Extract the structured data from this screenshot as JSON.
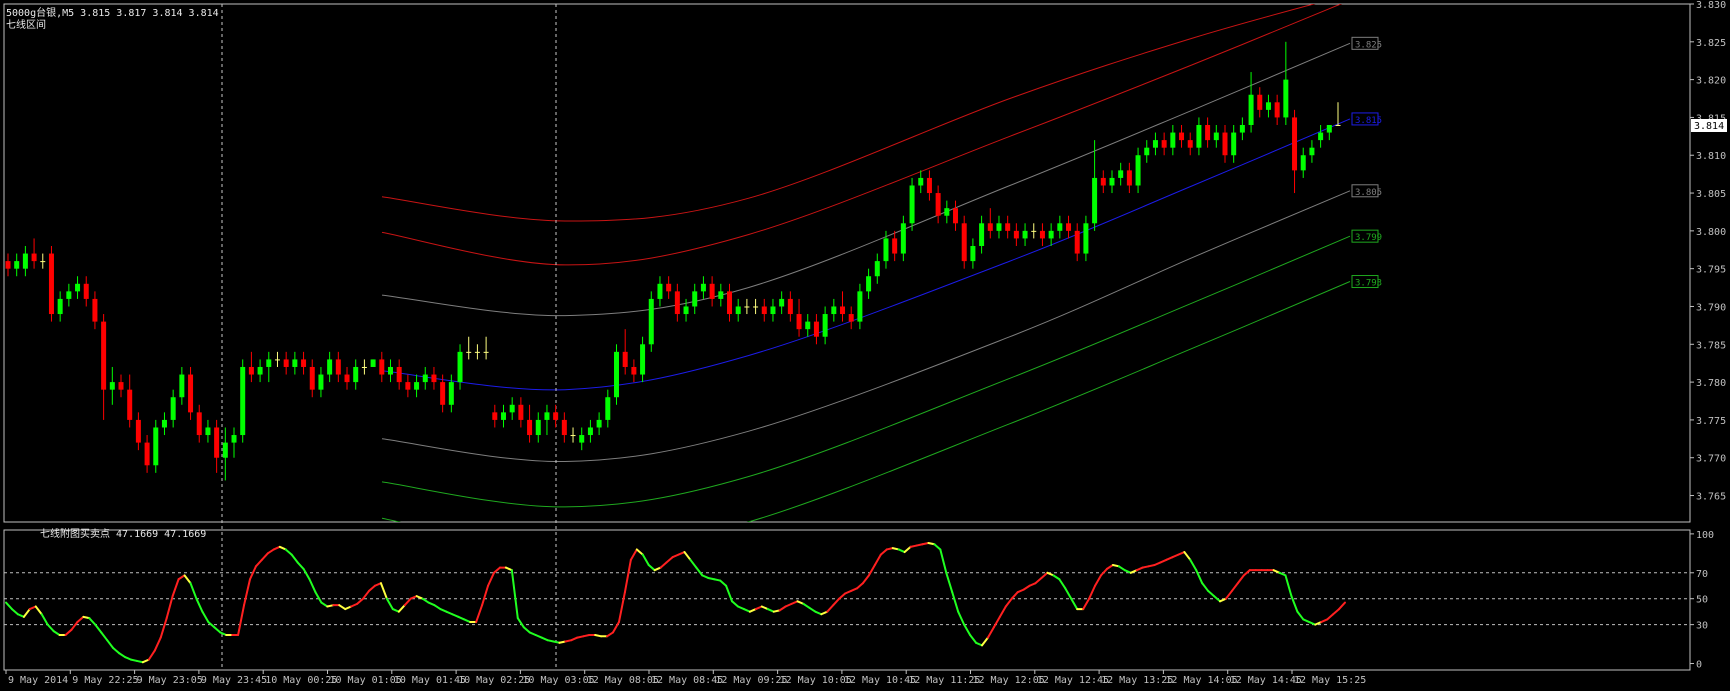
{
  "header": {
    "symbol_line": "5000g台银,M5  3.815 3.817 3.814 3.814",
    "indicator_name": "七线区间"
  },
  "sub_header": {
    "indicator_line": "七线附图买卖点 47.1669 47.1669"
  },
  "colors": {
    "background": "#000000",
    "axis": "#c0c0c0",
    "bull": "#00ff00",
    "bear": "#ff0000",
    "doji": "#ffff80",
    "band_red": "#c81414",
    "band_gray": "#7e7e7e",
    "band_mid": "#1c1ce8",
    "band_green": "#1fa81f",
    "osc_up": "#ff2020",
    "osc_down": "#20ff20",
    "osc_turn": "#ffff40"
  },
  "chart_data": {
    "type": "candlestick",
    "symbol": "5000g台银",
    "timeframe": "M5",
    "ylim": [
      3.7615,
      3.83
    ],
    "y_ticks": [
      3.765,
      3.77,
      3.775,
      3.78,
      3.785,
      3.79,
      3.795,
      3.8,
      3.805,
      3.81,
      3.815,
      3.82,
      3.825,
      3.83
    ],
    "current_price": "3.814",
    "x_labels": [
      "9 May 2014",
      "9 May 22:25",
      "9 May 23:05",
      "9 May 23:45",
      "10 May 00:25",
      "10 May 01:05",
      "10 May 01:45",
      "10 May 02:25",
      "10 May 03:05",
      "12 May 08:05",
      "12 May 08:45",
      "12 May 09:25",
      "12 May 10:05",
      "12 May 10:45",
      "12 May 11:25",
      "12 May 12:05",
      "12 May 12:45",
      "12 May 13:25",
      "12 May 14:05",
      "12 May 14:45",
      "12 May 15:25"
    ],
    "band_labels": [
      {
        "text": "3.825",
        "value": 3.8248
      },
      {
        "text": "3.815",
        "value": 3.8148
      },
      {
        "text": "3.805",
        "value": 3.8053
      },
      {
        "text": "3.799",
        "value": 3.7993
      },
      {
        "text": "3.793",
        "value": 3.7933
      }
    ],
    "band_curves": [
      {
        "kind": "red",
        "points": [
          [
            0,
            3.8045
          ],
          [
            14,
            3.8013
          ],
          [
            28,
            3.8043
          ],
          [
            48,
            3.8175
          ],
          [
            62,
            3.8255
          ],
          [
            74,
            3.8313
          ]
        ]
      },
      {
        "kind": "red",
        "points": [
          [
            0,
            3.7998
          ],
          [
            14,
            3.7955
          ],
          [
            28,
            3.7995
          ],
          [
            48,
            3.8125
          ],
          [
            62,
            3.822
          ],
          [
            74,
            3.8305
          ]
        ]
      },
      {
        "kind": "gray",
        "points": [
          [
            0,
            3.7915
          ],
          [
            14,
            3.7888
          ],
          [
            28,
            3.7925
          ],
          [
            48,
            3.806
          ],
          [
            62,
            3.816
          ],
          [
            74,
            3.8248
          ]
        ]
      },
      {
        "kind": "mid",
        "points": [
          [
            0,
            3.7815
          ],
          [
            14,
            3.779
          ],
          [
            28,
            3.7835
          ],
          [
            48,
            3.796
          ],
          [
            62,
            3.806
          ],
          [
            74,
            3.8148
          ]
        ]
      },
      {
        "kind": "gray",
        "points": [
          [
            0,
            3.7725
          ],
          [
            14,
            3.7695
          ],
          [
            28,
            3.7735
          ],
          [
            48,
            3.786
          ],
          [
            62,
            3.7965
          ],
          [
            74,
            3.8053
          ]
        ]
      },
      {
        "kind": "green",
        "points": [
          [
            0,
            3.7668
          ],
          [
            14,
            3.7635
          ],
          [
            28,
            3.7675
          ],
          [
            48,
            3.7805
          ],
          [
            62,
            3.7905
          ],
          [
            74,
            3.7993
          ]
        ]
      },
      {
        "kind": "green",
        "points": [
          [
            0,
            3.762
          ],
          [
            14,
            3.7575
          ],
          [
            28,
            3.7615
          ],
          [
            48,
            3.7745
          ],
          [
            62,
            3.7845
          ],
          [
            74,
            3.7933
          ]
        ]
      }
    ],
    "ohlc": [
      [
        3.796,
        3.797,
        3.794,
        3.795
      ],
      [
        3.795,
        3.797,
        3.794,
        3.796
      ],
      [
        3.795,
        3.798,
        3.794,
        3.797
      ],
      [
        3.797,
        3.799,
        3.795,
        3.796
      ],
      [
        3.796,
        3.797,
        3.795,
        3.796
      ],
      [
        3.797,
        3.798,
        3.788,
        3.789
      ],
      [
        3.789,
        3.792,
        3.788,
        3.791
      ],
      [
        3.791,
        3.793,
        3.79,
        3.792
      ],
      [
        3.792,
        3.794,
        3.791,
        3.793
      ],
      [
        3.793,
        3.794,
        3.79,
        3.791
      ],
      [
        3.791,
        3.792,
        3.787,
        3.788
      ],
      [
        3.788,
        3.789,
        3.775,
        3.779
      ],
      [
        3.779,
        3.782,
        3.777,
        3.78
      ],
      [
        3.78,
        3.781,
        3.778,
        3.779
      ],
      [
        3.779,
        3.781,
        3.774,
        3.775
      ],
      [
        3.775,
        3.776,
        3.771,
        3.772
      ],
      [
        3.772,
        3.773,
        3.768,
        3.769
      ],
      [
        3.769,
        3.775,
        3.768,
        3.774
      ],
      [
        3.774,
        3.776,
        3.773,
        3.775
      ],
      [
        3.775,
        3.779,
        3.774,
        3.778
      ],
      [
        3.778,
        3.782,
        3.777,
        3.781
      ],
      [
        3.781,
        3.782,
        3.775,
        3.776
      ],
      [
        3.776,
        3.777,
        3.772,
        3.773
      ],
      [
        3.773,
        3.775,
        3.772,
        3.774
      ],
      [
        3.774,
        3.775,
        3.768,
        3.77
      ],
      [
        3.77,
        3.774,
        3.767,
        3.772
      ],
      [
        3.772,
        3.774,
        3.77,
        3.773
      ],
      [
        3.773,
        3.783,
        3.772,
        3.782
      ],
      [
        3.782,
        3.784,
        3.78,
        3.781
      ],
      [
        3.781,
        3.783,
        3.78,
        3.782
      ],
      [
        3.782,
        3.784,
        3.78,
        3.783
      ],
      [
        3.783,
        3.784,
        3.782,
        3.783
      ],
      [
        3.783,
        3.784,
        3.781,
        3.782
      ],
      [
        3.782,
        3.784,
        3.781,
        3.783
      ],
      [
        3.783,
        3.784,
        3.781,
        3.782
      ],
      [
        3.782,
        3.783,
        3.778,
        3.779
      ],
      [
        3.779,
        3.782,
        3.778,
        3.781
      ],
      [
        3.781,
        3.784,
        3.78,
        3.783
      ],
      [
        3.783,
        3.784,
        3.78,
        3.781
      ],
      [
        3.781,
        3.782,
        3.779,
        3.78
      ],
      [
        3.78,
        3.783,
        3.779,
        3.782
      ],
      [
        3.782,
        3.783,
        3.781,
        3.782
      ],
      [
        3.782,
        3.783,
        3.782,
        3.783
      ],
      [
        3.783,
        3.784,
        3.78,
        3.781
      ],
      [
        3.781,
        3.783,
        3.78,
        3.782
      ],
      [
        3.782,
        3.783,
        3.779,
        3.78
      ],
      [
        3.78,
        3.781,
        3.778,
        3.779
      ],
      [
        3.779,
        3.781,
        3.778,
        3.78
      ],
      [
        3.78,
        3.782,
        3.779,
        3.781
      ],
      [
        3.781,
        3.782,
        3.779,
        3.78
      ],
      [
        3.78,
        3.781,
        3.776,
        3.777
      ],
      [
        3.777,
        3.781,
        3.776,
        3.78
      ],
      [
        3.78,
        3.785,
        3.779,
        3.784
      ],
      [
        3.784,
        3.786,
        3.783,
        3.784
      ],
      [
        3.784,
        3.785,
        3.783,
        3.784
      ],
      [
        3.784,
        3.786,
        3.783,
        3.784
      ],
      [
        3.776,
        3.777,
        3.774,
        3.775
      ],
      [
        3.775,
        3.777,
        3.774,
        3.776
      ],
      [
        3.776,
        3.778,
        3.775,
        3.777
      ],
      [
        3.777,
        3.778,
        3.774,
        3.775
      ],
      [
        3.775,
        3.777,
        3.772,
        3.773
      ],
      [
        3.773,
        3.776,
        3.772,
        3.775
      ],
      [
        3.775,
        3.777,
        3.773,
        3.776
      ],
      [
        3.776,
        3.777,
        3.774,
        3.775
      ],
      [
        3.775,
        3.776,
        3.772,
        3.773
      ],
      [
        3.773,
        3.774,
        3.772,
        3.773
      ],
      [
        3.772,
        3.774,
        3.771,
        3.773
      ],
      [
        3.773,
        3.775,
        3.772,
        3.774
      ],
      [
        3.774,
        3.776,
        3.773,
        3.775
      ],
      [
        3.775,
        3.779,
        3.774,
        3.778
      ],
      [
        3.778,
        3.785,
        3.777,
        3.784
      ],
      [
        3.784,
        3.787,
        3.781,
        3.782
      ],
      [
        3.782,
        3.783,
        3.78,
        3.781
      ],
      [
        3.781,
        3.786,
        3.78,
        3.785
      ],
      [
        3.785,
        3.792,
        3.784,
        3.791
      ],
      [
        3.791,
        3.794,
        3.79,
        3.793
      ],
      [
        3.793,
        3.794,
        3.791,
        3.792
      ],
      [
        3.792,
        3.793,
        3.788,
        3.789
      ],
      [
        3.789,
        3.791,
        3.788,
        3.79
      ],
      [
        3.79,
        3.793,
        3.789,
        3.792
      ],
      [
        3.792,
        3.794,
        3.791,
        3.793
      ],
      [
        3.793,
        3.794,
        3.79,
        3.791
      ],
      [
        3.791,
        3.793,
        3.79,
        3.792
      ],
      [
        3.792,
        3.793,
        3.788,
        3.789
      ],
      [
        3.789,
        3.791,
        3.788,
        3.79
      ],
      [
        3.79,
        3.791,
        3.789,
        3.79
      ],
      [
        3.79,
        3.791,
        3.789,
        3.79
      ],
      [
        3.79,
        3.791,
        3.788,
        3.789
      ],
      [
        3.789,
        3.791,
        3.788,
        3.79
      ],
      [
        3.79,
        3.792,
        3.789,
        3.791
      ],
      [
        3.791,
        3.792,
        3.788,
        3.789
      ],
      [
        3.789,
        3.791,
        3.786,
        3.787
      ],
      [
        3.787,
        3.789,
        3.786,
        3.788
      ],
      [
        3.788,
        3.789,
        3.785,
        3.786
      ],
      [
        3.786,
        3.79,
        3.785,
        3.789
      ],
      [
        3.789,
        3.791,
        3.788,
        3.79
      ],
      [
        3.79,
        3.792,
        3.788,
        3.789
      ],
      [
        3.789,
        3.79,
        3.787,
        3.788
      ],
      [
        3.788,
        3.793,
        3.787,
        3.792
      ],
      [
        3.792,
        3.795,
        3.791,
        3.794
      ],
      [
        3.794,
        3.797,
        3.793,
        3.796
      ],
      [
        3.796,
        3.8,
        3.795,
        3.799
      ],
      [
        3.799,
        3.8,
        3.796,
        3.797
      ],
      [
        3.797,
        3.802,
        3.796,
        3.801
      ],
      [
        3.801,
        3.807,
        3.8,
        3.806
      ],
      [
        3.806,
        3.808,
        3.805,
        3.807
      ],
      [
        3.807,
        3.808,
        3.804,
        3.805
      ],
      [
        3.805,
        3.806,
        3.801,
        3.802
      ],
      [
        3.802,
        3.804,
        3.801,
        3.803
      ],
      [
        3.803,
        3.804,
        3.8,
        3.801
      ],
      [
        3.801,
        3.802,
        3.795,
        3.796
      ],
      [
        3.796,
        3.799,
        3.795,
        3.798
      ],
      [
        3.798,
        3.802,
        3.797,
        3.801
      ],
      [
        3.801,
        3.803,
        3.799,
        3.8
      ],
      [
        3.8,
        3.802,
        3.799,
        3.801
      ],
      [
        3.801,
        3.802,
        3.799,
        3.8
      ],
      [
        3.8,
        3.801,
        3.798,
        3.799
      ],
      [
        3.799,
        3.801,
        3.798,
        3.8
      ],
      [
        3.8,
        3.801,
        3.799,
        3.8
      ],
      [
        3.8,
        3.801,
        3.798,
        3.799
      ],
      [
        3.799,
        3.801,
        3.798,
        3.8
      ],
      [
        3.8,
        3.802,
        3.799,
        3.801
      ],
      [
        3.801,
        3.802,
        3.799,
        3.8
      ],
      [
        3.8,
        3.801,
        3.796,
        3.797
      ],
      [
        3.797,
        3.802,
        3.796,
        3.801
      ],
      [
        3.801,
        3.812,
        3.8,
        3.807
      ],
      [
        3.807,
        3.808,
        3.805,
        3.806
      ],
      [
        3.806,
        3.808,
        3.805,
        3.807
      ],
      [
        3.807,
        3.809,
        3.806,
        3.808
      ],
      [
        3.808,
        3.809,
        3.805,
        3.806
      ],
      [
        3.806,
        3.811,
        3.805,
        3.81
      ],
      [
        3.81,
        3.812,
        3.809,
        3.811
      ],
      [
        3.811,
        3.813,
        3.81,
        3.812
      ],
      [
        3.812,
        3.813,
        3.81,
        3.811
      ],
      [
        3.811,
        3.814,
        3.81,
        3.813
      ],
      [
        3.813,
        3.814,
        3.811,
        3.812
      ],
      [
        3.812,
        3.813,
        3.81,
        3.811
      ],
      [
        3.811,
        3.815,
        3.81,
        3.814
      ],
      [
        3.814,
        3.815,
        3.811,
        3.812
      ],
      [
        3.812,
        3.814,
        3.811,
        3.813
      ],
      [
        3.813,
        3.814,
        3.809,
        3.81
      ],
      [
        3.81,
        3.814,
        3.809,
        3.813
      ],
      [
        3.813,
        3.815,
        3.812,
        3.814
      ],
      [
        3.814,
        3.821,
        3.813,
        3.818
      ],
      [
        3.818,
        3.819,
        3.815,
        3.816
      ],
      [
        3.816,
        3.818,
        3.815,
        3.817
      ],
      [
        3.817,
        3.818,
        3.814,
        3.815
      ],
      [
        3.815,
        3.825,
        3.814,
        3.82
      ],
      [
        3.815,
        3.816,
        3.805,
        3.808
      ],
      [
        3.808,
        3.811,
        3.807,
        3.81
      ],
      [
        3.81,
        3.812,
        3.809,
        3.811
      ],
      [
        3.812,
        3.814,
        3.811,
        3.813
      ],
      [
        3.813,
        3.814,
        3.812,
        3.814
      ],
      [
        3.814,
        3.817,
        3.814,
        3.814
      ]
    ],
    "oscillator": {
      "name": "七线附图买卖点",
      "value1": 47.1669,
      "value2": 47.1669,
      "ylim": [
        -5,
        103
      ],
      "levels": [
        30,
        50,
        70
      ],
      "y_ticks": [
        0,
        30,
        50,
        70,
        100
      ],
      "values": [
        47,
        42,
        38,
        36,
        42,
        44,
        38,
        30,
        25,
        22,
        22,
        26,
        32,
        36,
        35,
        30,
        24,
        18,
        12,
        8,
        5,
        3,
        2,
        1,
        3,
        10,
        20,
        35,
        52,
        65,
        68,
        62,
        50,
        40,
        32,
        28,
        24,
        22,
        22,
        22,
        45,
        65,
        75,
        80,
        85,
        88,
        90,
        88,
        84,
        78,
        73,
        65,
        55,
        47,
        44,
        45,
        45,
        42,
        44,
        46,
        50,
        56,
        60,
        62,
        50,
        42,
        40,
        45,
        50,
        52,
        50,
        47,
        45,
        42,
        40,
        38,
        36,
        34,
        32,
        32,
        45,
        60,
        70,
        74,
        74,
        72,
        35,
        28,
        24,
        22,
        20,
        18,
        17,
        16,
        17,
        18,
        20,
        21,
        22,
        22,
        21,
        21,
        24,
        32,
        55,
        80,
        88,
        84,
        76,
        72,
        74,
        78,
        82,
        84,
        86,
        80,
        74,
        68,
        66,
        65,
        64,
        60,
        48,
        44,
        42,
        40,
        42,
        44,
        42,
        40,
        41,
        44,
        46,
        48,
        46,
        43,
        40,
        38,
        40,
        45,
        50,
        54,
        56,
        58,
        62,
        68,
        76,
        84,
        88,
        89,
        88,
        86,
        90,
        91,
        92,
        93,
        92,
        88,
        70,
        55,
        40,
        30,
        22,
        16,
        14,
        20,
        28,
        36,
        44,
        50,
        55,
        57,
        60,
        62,
        66,
        70,
        68,
        65,
        58,
        50,
        42,
        42,
        50,
        60,
        68,
        73,
        76,
        75,
        72,
        70,
        72,
        74,
        75,
        76,
        78,
        80,
        82,
        84,
        86,
        80,
        72,
        62,
        56,
        52,
        48,
        50,
        56,
        62,
        68,
        72,
        72,
        72,
        72,
        72,
        70,
        68,
        52,
        40,
        34,
        32,
        30,
        32,
        34,
        38,
        42,
        47
      ],
      "x_count": 180
    }
  }
}
